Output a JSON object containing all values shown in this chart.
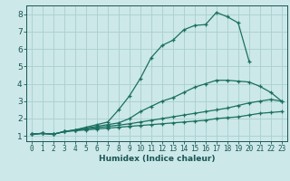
{
  "xlabel": "Humidex (Indice chaleur)",
  "bg_color": "#cce8e8",
  "grid_color": "#aacece",
  "line_color": "#1a7060",
  "xlim": [
    -0.5,
    23.5
  ],
  "ylim": [
    0.7,
    8.5
  ],
  "xticks": [
    0,
    1,
    2,
    3,
    4,
    5,
    6,
    7,
    8,
    9,
    10,
    11,
    12,
    13,
    14,
    15,
    16,
    17,
    18,
    19,
    20,
    21,
    22,
    23
  ],
  "yticks": [
    1,
    2,
    3,
    4,
    5,
    6,
    7,
    8
  ],
  "lines": [
    {
      "x": [
        0,
        1,
        2,
        3,
        4,
        5,
        6,
        7,
        8,
        9,
        10,
        11,
        12,
        13,
        14,
        15,
        16,
        17,
        18,
        19,
        20
      ],
      "y": [
        1.1,
        1.15,
        1.1,
        1.25,
        1.35,
        1.5,
        1.65,
        1.8,
        2.5,
        3.3,
        4.3,
        5.5,
        6.2,
        6.5,
        7.1,
        7.35,
        7.4,
        8.1,
        7.85,
        7.5,
        5.3
      ]
    },
    {
      "x": [
        0,
        1,
        2,
        3,
        4,
        5,
        6,
        7,
        8,
        9,
        10,
        11,
        12,
        13,
        14,
        15,
        16,
        17,
        18,
        19,
        20,
        21,
        22,
        23
      ],
      "y": [
        1.1,
        1.15,
        1.1,
        1.25,
        1.35,
        1.45,
        1.55,
        1.65,
        1.75,
        2.0,
        2.4,
        2.7,
        3.0,
        3.2,
        3.5,
        3.8,
        4.0,
        4.2,
        4.2,
        4.15,
        4.1,
        3.85,
        3.5,
        3.0
      ]
    },
    {
      "x": [
        0,
        1,
        2,
        3,
        4,
        5,
        6,
        7,
        8,
        9,
        10,
        11,
        12,
        13,
        14,
        15,
        16,
        17,
        18,
        19,
        20,
        21,
        22,
        23
      ],
      "y": [
        1.1,
        1.15,
        1.1,
        1.25,
        1.32,
        1.4,
        1.48,
        1.55,
        1.62,
        1.7,
        1.8,
        1.9,
        2.0,
        2.1,
        2.2,
        2.3,
        2.4,
        2.5,
        2.6,
        2.75,
        2.9,
        3.0,
        3.1,
        3.0
      ]
    },
    {
      "x": [
        0,
        1,
        2,
        3,
        4,
        5,
        6,
        7,
        8,
        9,
        10,
        11,
        12,
        13,
        14,
        15,
        16,
        17,
        18,
        19,
        20,
        21,
        22,
        23
      ],
      "y": [
        1.1,
        1.15,
        1.1,
        1.25,
        1.3,
        1.35,
        1.4,
        1.45,
        1.5,
        1.55,
        1.6,
        1.65,
        1.7,
        1.75,
        1.8,
        1.85,
        1.9,
        2.0,
        2.05,
        2.1,
        2.2,
        2.3,
        2.35,
        2.4
      ]
    }
  ]
}
